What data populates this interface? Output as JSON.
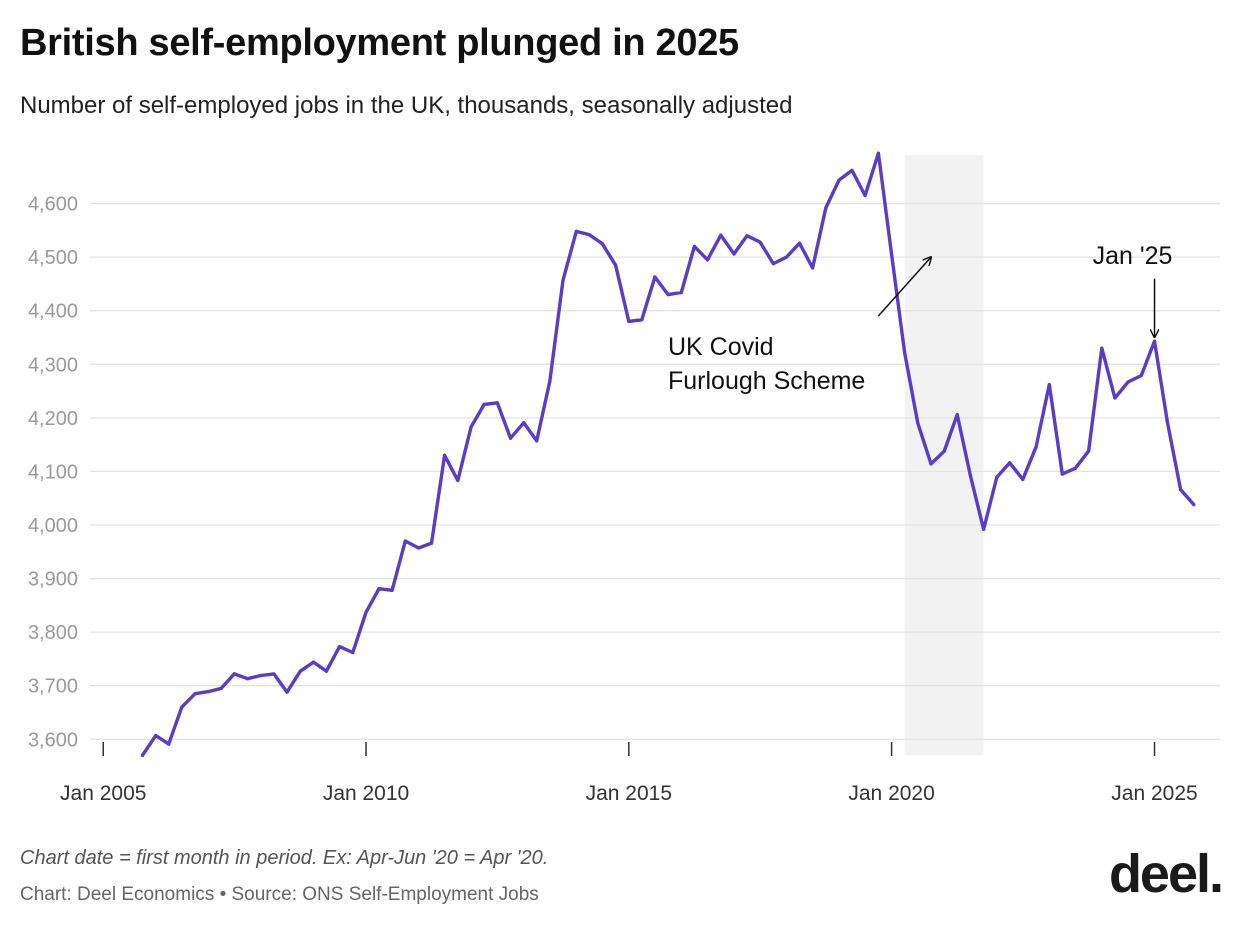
{
  "chart_data": {
    "type": "line",
    "title": "British self-employment plunged in 2025",
    "subtitle": "Number of self-employed jobs in the UK, thousands, seasonally adjusted",
    "xlabel": "",
    "ylabel": "",
    "ylim": [
      3565,
      4700
    ],
    "xlim": [
      "2004-10-01",
      "2026-04-01"
    ],
    "y_ticks": [
      3600,
      3700,
      3800,
      3900,
      4000,
      4100,
      4200,
      4300,
      4400,
      4500,
      4600
    ],
    "y_tick_labels": [
      "3,600",
      "3,700",
      "3,800",
      "3,900",
      "4,000",
      "4,100",
      "4,200",
      "4,300",
      "4,400",
      "4,500",
      "4,600"
    ],
    "x_ticks": [
      "2005-01-01",
      "2010-01-01",
      "2015-01-01",
      "2020-01-01",
      "2025-01-01"
    ],
    "x_tick_labels": [
      "Jan 2005",
      "Jan 2010",
      "Jan 2015",
      "Jan 2020",
      "Jan 2025"
    ],
    "grid": true,
    "line_color": "#5b3cc4",
    "series": [
      {
        "values": [
          {
            "x": "2005-10-01",
            "y": 3570
          },
          {
            "x": "2006-01-01",
            "y": 3607
          },
          {
            "x": "2006-04-01",
            "y": 3591
          },
          {
            "x": "2006-07-01",
            "y": 3660
          },
          {
            "x": "2006-10-01",
            "y": 3685
          },
          {
            "x": "2007-01-01",
            "y": 3689
          },
          {
            "x": "2007-04-01",
            "y": 3695
          },
          {
            "x": "2007-07-01",
            "y": 3722
          },
          {
            "x": "2007-10-01",
            "y": 3713
          },
          {
            "x": "2008-01-01",
            "y": 3719
          },
          {
            "x": "2008-04-01",
            "y": 3722
          },
          {
            "x": "2008-07-01",
            "y": 3688
          },
          {
            "x": "2008-10-01",
            "y": 3727
          },
          {
            "x": "2009-01-01",
            "y": 3744
          },
          {
            "x": "2009-04-01",
            "y": 3727
          },
          {
            "x": "2009-07-01",
            "y": 3773
          },
          {
            "x": "2009-10-01",
            "y": 3762
          },
          {
            "x": "2010-01-01",
            "y": 3837
          },
          {
            "x": "2010-04-01",
            "y": 3881
          },
          {
            "x": "2010-07-01",
            "y": 3878
          },
          {
            "x": "2010-10-01",
            "y": 3970
          },
          {
            "x": "2011-01-01",
            "y": 3957
          },
          {
            "x": "2011-04-01",
            "y": 3966
          },
          {
            "x": "2011-07-01",
            "y": 4130
          },
          {
            "x": "2011-10-01",
            "y": 4083
          },
          {
            "x": "2012-01-01",
            "y": 4183
          },
          {
            "x": "2012-04-01",
            "y": 4225
          },
          {
            "x": "2012-07-01",
            "y": 4228
          },
          {
            "x": "2012-10-01",
            "y": 4162
          },
          {
            "x": "2013-01-01",
            "y": 4191
          },
          {
            "x": "2013-04-01",
            "y": 4157
          },
          {
            "x": "2013-07-01",
            "y": 4268
          },
          {
            "x": "2013-10-01",
            "y": 4457
          },
          {
            "x": "2014-01-01",
            "y": 4548
          },
          {
            "x": "2014-04-01",
            "y": 4542
          },
          {
            "x": "2014-07-01",
            "y": 4525
          },
          {
            "x": "2014-10-01",
            "y": 4485
          },
          {
            "x": "2015-01-01",
            "y": 4380
          },
          {
            "x": "2015-04-01",
            "y": 4383
          },
          {
            "x": "2015-07-01",
            "y": 4463
          },
          {
            "x": "2015-10-01",
            "y": 4430
          },
          {
            "x": "2016-01-01",
            "y": 4434
          },
          {
            "x": "2016-04-01",
            "y": 4520
          },
          {
            "x": "2016-07-01",
            "y": 4495
          },
          {
            "x": "2016-10-01",
            "y": 4541
          },
          {
            "x": "2017-01-01",
            "y": 4506
          },
          {
            "x": "2017-04-01",
            "y": 4540
          },
          {
            "x": "2017-07-01",
            "y": 4528
          },
          {
            "x": "2017-10-01",
            "y": 4488
          },
          {
            "x": "2018-01-01",
            "y": 4500
          },
          {
            "x": "2018-04-01",
            "y": 4526
          },
          {
            "x": "2018-07-01",
            "y": 4480
          },
          {
            "x": "2018-10-01",
            "y": 4592
          },
          {
            "x": "2019-01-01",
            "y": 4644
          },
          {
            "x": "2019-04-01",
            "y": 4662
          },
          {
            "x": "2019-07-01",
            "y": 4615
          },
          {
            "x": "2019-10-01",
            "y": 4694
          },
          {
            "x": "2020-01-01",
            "y": 4505
          },
          {
            "x": "2020-04-01",
            "y": 4321
          },
          {
            "x": "2020-07-01",
            "y": 4190
          },
          {
            "x": "2020-10-01",
            "y": 4114
          },
          {
            "x": "2021-01-01",
            "y": 4138
          },
          {
            "x": "2021-04-01",
            "y": 4206
          },
          {
            "x": "2021-07-01",
            "y": 4093
          },
          {
            "x": "2021-10-01",
            "y": 3992
          },
          {
            "x": "2022-01-01",
            "y": 4089
          },
          {
            "x": "2022-04-01",
            "y": 4116
          },
          {
            "x": "2022-07-01",
            "y": 4085
          },
          {
            "x": "2022-10-01",
            "y": 4146
          },
          {
            "x": "2023-01-01",
            "y": 4262
          },
          {
            "x": "2023-04-01",
            "y": 4095
          },
          {
            "x": "2023-07-01",
            "y": 4106
          },
          {
            "x": "2023-10-01",
            "y": 4138
          },
          {
            "x": "2024-01-01",
            "y": 4330
          },
          {
            "x": "2024-04-01",
            "y": 4237
          },
          {
            "x": "2024-07-01",
            "y": 4267
          },
          {
            "x": "2024-10-01",
            "y": 4279
          },
          {
            "x": "2025-01-01",
            "y": 4343
          },
          {
            "x": "2025-04-01",
            "y": 4191
          },
          {
            "x": "2025-07-01",
            "y": 4066
          },
          {
            "x": "2025-10-01",
            "y": 4038
          }
        ]
      }
    ],
    "shaded_region": {
      "start": "2020-04-01",
      "end": "2021-10-01",
      "color": "#f2f2f2"
    },
    "annotations": [
      {
        "text_lines": [
          "UK Covid",
          "Furlough Scheme"
        ],
        "arrow_from": {
          "x": "2019-10-01",
          "y": 4390
        },
        "arrow_to": {
          "x": "2020-10-01",
          "y": 4500
        }
      },
      {
        "text": "Jan '25",
        "arrow_from": {
          "x": "2025-01-01",
          "y": 4460
        },
        "arrow_to": {
          "x": "2025-01-01",
          "y": 4345
        }
      }
    ]
  },
  "note": "Chart date = first month in period. Ex: Apr-Jun '20 = Apr '20.",
  "source": "Chart: Deel Economics • Source: ONS Self-Employment Jobs",
  "logo": "deel."
}
